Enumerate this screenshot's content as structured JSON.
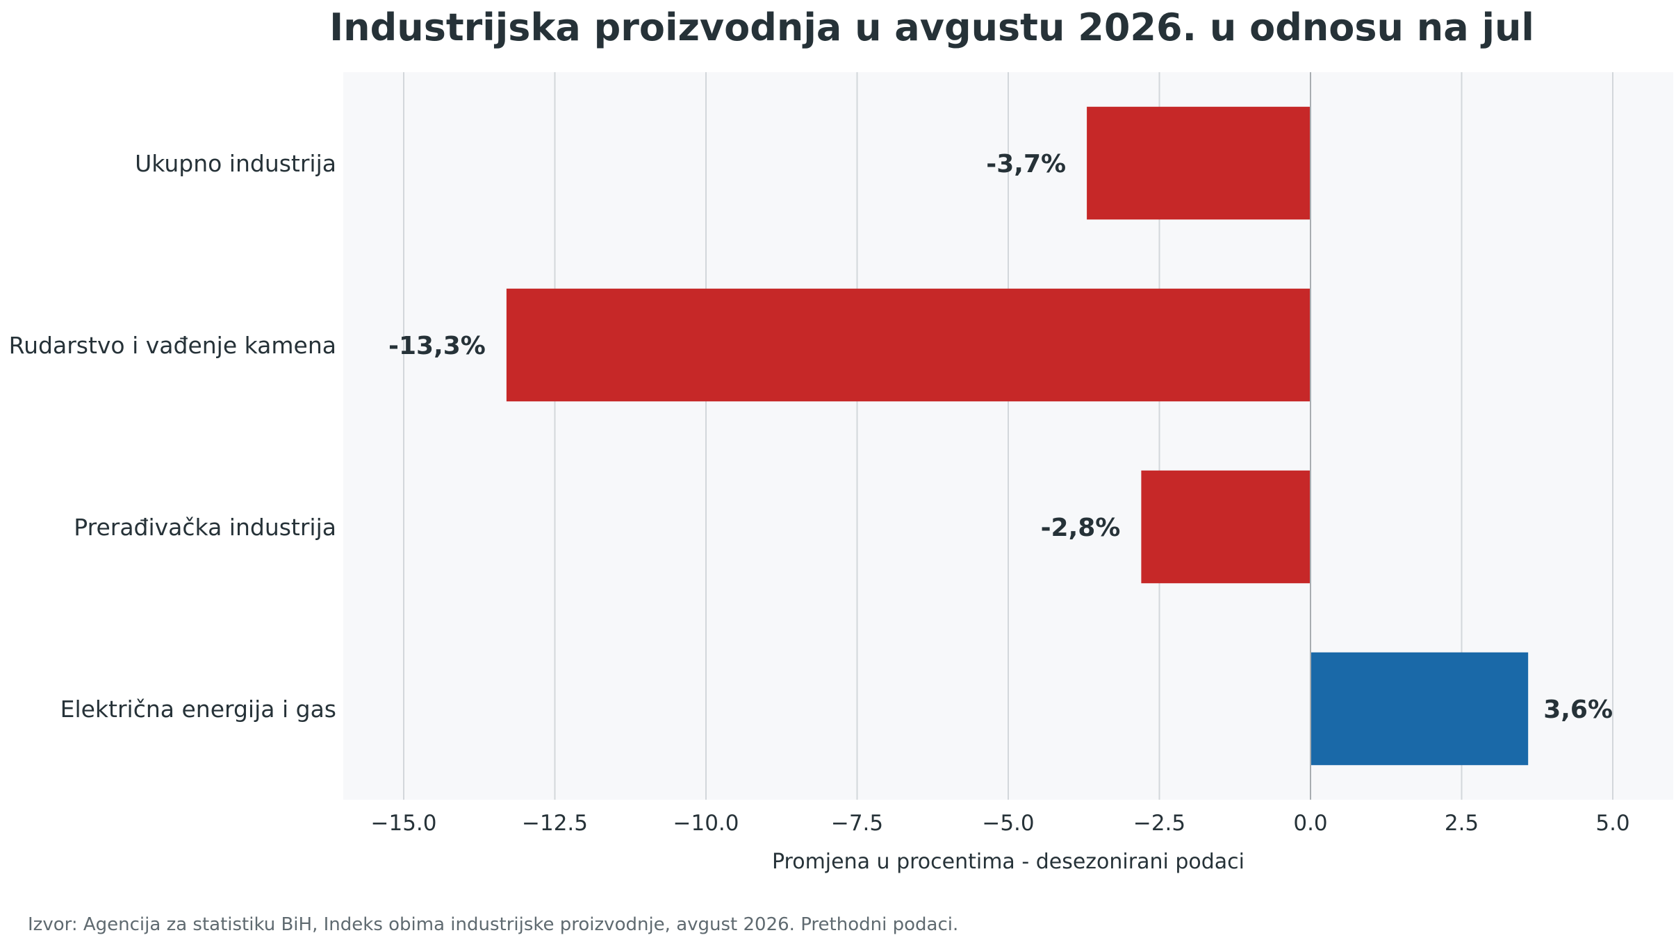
{
  "colors": {
    "negative": "#c62828",
    "positive": "#1a69a8",
    "plot_background": "#f7f8fa",
    "grid": "#d3d7db",
    "zero_line": "#a8adb1",
    "text": "#263238",
    "source_text": "#5f6a70"
  },
  "chart_data": {
    "type": "bar",
    "orientation": "horizontal",
    "title": "Industrijska proizvodnja u avgustu 2026. u odnosu na jul",
    "xlabel": "Promjena u procentima - desezonirani podaci",
    "ylabel": "",
    "xlim": [
      -16,
      6
    ],
    "xticks": [
      -15.0,
      -12.5,
      -10.0,
      -7.5,
      -5.0,
      -2.5,
      0.0,
      2.5,
      5.0
    ],
    "xtick_labels": [
      "−15.0",
      "−12.5",
      "−10.0",
      "−7.5",
      "−5.0",
      "−2.5",
      "0.0",
      "2.5",
      "5.0"
    ],
    "grid": "vertical",
    "categories": [
      "Ukupno industrija",
      "Rudarstvo i vađenje kamena",
      "Prerađivačka industrija",
      "Električna energija i gas"
    ],
    "values": [
      -3.7,
      -13.3,
      -2.8,
      3.6
    ],
    "data_labels": [
      "-3,7%",
      "-13,3%",
      "-2,8%",
      "3,6%"
    ],
    "source": "Izvor: Agencija za statistiku BiH, Indeks obima industrijske proizvodnje, avgust 2026. Prethodni podaci."
  }
}
